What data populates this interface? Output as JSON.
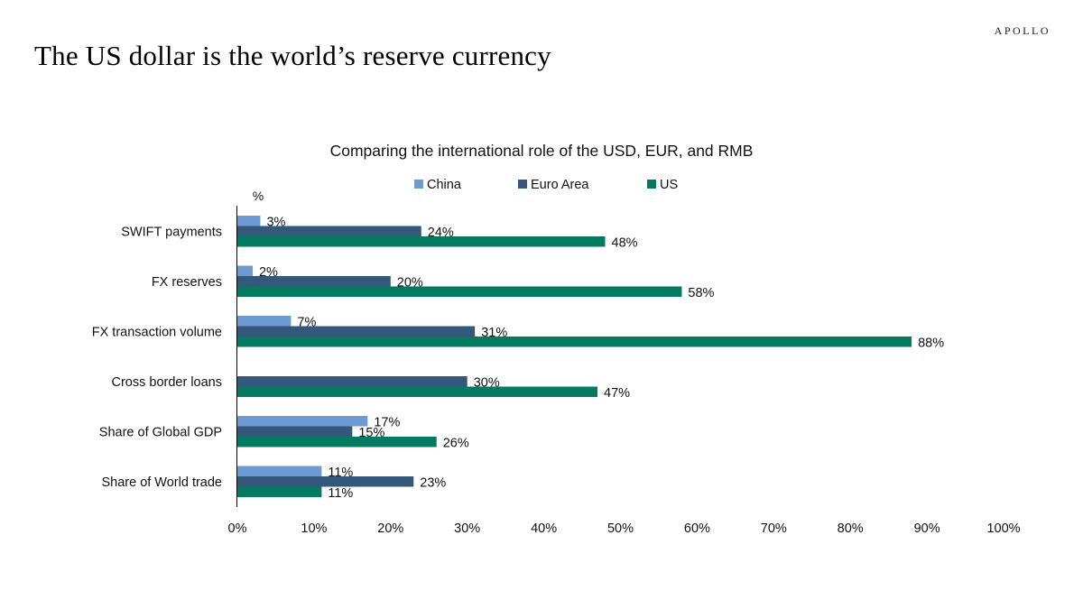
{
  "brand": "APOLLO",
  "page_title": "The US dollar is the world’s reserve currency",
  "chart_data": {
    "type": "bar",
    "orientation": "horizontal",
    "title": "Comparing the international role of the USD, EUR, and RMB",
    "unit_label": "%",
    "legend_position": "top",
    "categories": [
      "SWIFT payments",
      "FX reserves",
      "FX transaction volume",
      "Cross border loans",
      "Share of Global GDP",
      "Share of World trade"
    ],
    "series": [
      {
        "name": "China",
        "color": "#6b9bd2",
        "values": [
          3,
          2,
          7,
          null,
          17,
          11
        ],
        "labels": [
          "3%",
          "2%",
          "7%",
          "",
          "17%",
          "11%"
        ]
      },
      {
        "name": "Euro Area",
        "color": "#34577c",
        "values": [
          24,
          20,
          31,
          30,
          15,
          23
        ],
        "labels": [
          "24%",
          "20%",
          "31%",
          "30%",
          "15%",
          "23%"
        ]
      },
      {
        "name": "US",
        "color": "#047a60",
        "values": [
          48,
          58,
          88,
          47,
          26,
          11
        ],
        "labels": [
          "48%",
          "58%",
          "88%",
          "47%",
          "26%",
          "11%"
        ]
      }
    ],
    "xlim": [
      0,
      100
    ],
    "xticks": [
      0,
      10,
      20,
      30,
      40,
      50,
      60,
      70,
      80,
      90,
      100
    ],
    "xtick_labels": [
      "0%",
      "10%",
      "20%",
      "30%",
      "40%",
      "50%",
      "60%",
      "70%",
      "80%",
      "90%",
      "100%"
    ],
    "grid": false
  }
}
